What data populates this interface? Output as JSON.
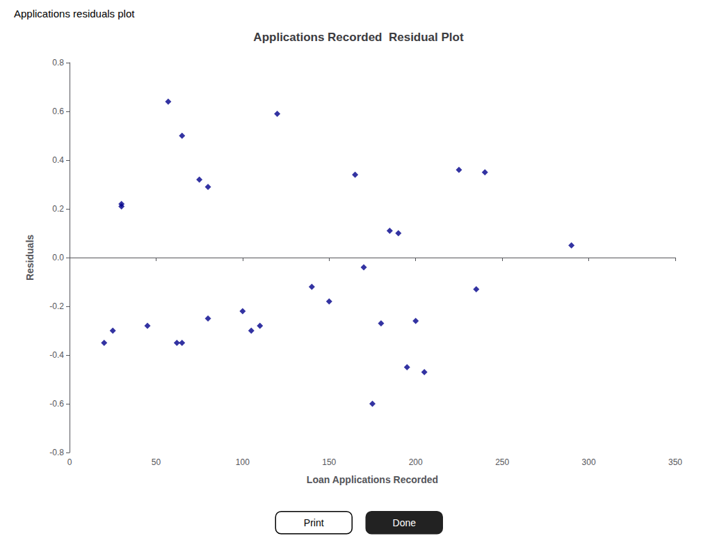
{
  "chart_data": {
    "type": "scatter",
    "title": "Applications Recorded  Residual Plot",
    "x_label": "Loan Applications Recorded",
    "y_label": "Residuals",
    "annotations": [
      "Applications residuals plot",
      "Print",
      "Done"
    ],
    "x": [
      20,
      25,
      30,
      30,
      45,
      57,
      62,
      65,
      65,
      75,
      80,
      80,
      100,
      105,
      110,
      120,
      140,
      150,
      165,
      170,
      175,
      180,
      185,
      190,
      195,
      200,
      205,
      225,
      235,
      240,
      290
    ],
    "values": [
      -0.35,
      -0.3,
      0.21,
      0.22,
      -0.28,
      0.64,
      -0.35,
      0.5,
      -0.35,
      0.32,
      0.29,
      -0.25,
      -0.22,
      -0.3,
      -0.28,
      0.59,
      -0.12,
      -0.18,
      0.34,
      -0.04,
      -0.6,
      -0.27,
      0.11,
      0.1,
      -0.45,
      -0.26,
      -0.47,
      0.36,
      -0.13,
      0.35,
      0.05
    ],
    "color": "#00008B",
    "marker": "diamond",
    "xlim": [
      0,
      350
    ],
    "ylim": [
      -0.8,
      0.8
    ],
    "xticks": [
      0,
      50,
      100,
      150,
      200,
      250,
      300,
      350
    ],
    "yticks": [
      -0.8,
      -0.6,
      -0.4,
      -0.2,
      {
        "value": 0,
        "label": "0.0"
      },
      0.2,
      0.4,
      0.6,
      0.8
    ],
    "grid": false
  }
}
